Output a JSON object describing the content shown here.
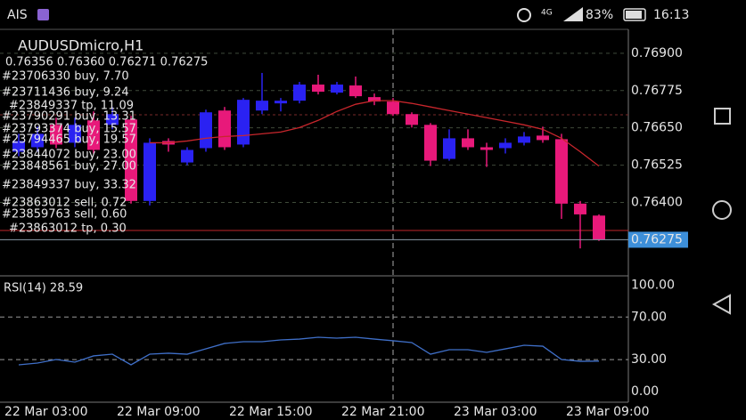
{
  "status_bar": {
    "carrier": "AIS",
    "network": "4G",
    "battery": "83%",
    "time": "16:13"
  },
  "chart_data": [
    {
      "type": "candlestick",
      "title": "AUDUSDmicro,H1",
      "subtitle": "0.76356 0.76360 0.76271 0.76275",
      "categories": [
        "22 Mar 03:00",
        null,
        null,
        null,
        null,
        null,
        "22 Mar 09:00",
        null,
        null,
        null,
        null,
        null,
        "22 Mar 15:00",
        null,
        null,
        null,
        null,
        null,
        "22 Mar 21:00",
        null,
        null,
        null,
        null,
        null,
        "23 Mar 03:00",
        null,
        null,
        null,
        null,
        null,
        "23 Mar 09:00",
        null
      ],
      "open": [
        0.7657,
        0.76585,
        0.7666,
        0.766,
        0.76675,
        0.7666,
        0.76678,
        0.76405,
        0.76606,
        0.76534,
        0.76582,
        0.76708,
        0.76594,
        0.76708,
        0.76732,
        0.76741,
        0.76795,
        0.76768,
        0.76792,
        0.76753,
        0.76738,
        0.76696,
        0.7666,
        0.76546,
        0.76615,
        0.76585,
        0.76582,
        0.766,
        0.76624,
        0.76612,
        0.76396,
        0.76356
      ],
      "high": [
        0.7663,
        0.76654,
        0.76684,
        0.76684,
        0.76705,
        0.7672,
        0.7669,
        0.76615,
        0.76615,
        0.76585,
        0.76711,
        0.7672,
        0.7675,
        0.76834,
        0.7675,
        0.76804,
        0.76828,
        0.76804,
        0.76822,
        0.76765,
        0.7675,
        0.76702,
        0.76666,
        0.76645,
        0.76645,
        0.766,
        0.76615,
        0.76636,
        0.76654,
        0.7663,
        0.76405,
        0.7636
      ],
      "low": [
        0.76555,
        0.7657,
        0.76582,
        0.76585,
        0.76564,
        0.76645,
        0.76396,
        0.7639,
        0.7657,
        0.76525,
        0.7657,
        0.76576,
        0.76585,
        0.76696,
        0.76705,
        0.76732,
        0.76762,
        0.76762,
        0.7675,
        0.76726,
        0.7669,
        0.76651,
        0.76522,
        0.7654,
        0.76576,
        0.76519,
        0.76564,
        0.76591,
        0.766,
        0.76345,
        0.76246,
        0.76271
      ],
      "close": [
        0.76606,
        0.7663,
        0.76594,
        0.7666,
        0.76576,
        0.76696,
        0.76405,
        0.766,
        0.76594,
        0.76576,
        0.76702,
        0.76585,
        0.76744,
        0.76741,
        0.76741,
        0.76795,
        0.76771,
        0.76795,
        0.76756,
        0.76738,
        0.76696,
        0.7666,
        0.7654,
        0.76615,
        0.76585,
        0.76576,
        0.766,
        0.76621,
        0.76609,
        0.76396,
        0.7636,
        0.76275
      ],
      "colors": {
        "up": "#2a22f2",
        "down": "#e8197a"
      },
      "ma": {
        "color": "#c8262c",
        "values": [
          null,
          null,
          null,
          null,
          null,
          null,
          null,
          0.766,
          0.766,
          0.76606,
          0.76615,
          0.76621,
          0.76624,
          0.7663,
          0.76636,
          0.76651,
          0.76675,
          0.76705,
          0.76729,
          0.76741,
          0.76741,
          0.76732,
          0.7672,
          0.76708,
          0.76696,
          0.76684,
          0.76672,
          0.7666,
          0.76645,
          0.76615,
          0.7657,
          0.76522
        ]
      },
      "ylim": [
        0.7616,
        0.7698
      ],
      "yticks": [
        {
          "value": 0.769,
          "label": "0.76900"
        },
        0.76775,
        {
          "value": 0.7665,
          "label": "0.76650"
        },
        0.76525,
        {
          "value": 0.764,
          "label": "0.76400"
        }
      ],
      "grid": true,
      "current_price": 0.76275,
      "annotations": [
        "#23706330 buy, 7.70",
        "#23711436 buy, 9.24",
        "#23849337 tp, 11.09",
        "#23790291 buy, 13.31",
        "#23793374 buy, 15.57",
        "#23794465 buy, 19.57",
        "#23844072 buy, 23.00",
        "#23848561 buy, 27.00",
        "#23849337 buy, 33.32",
        "#23863012 sell, 0.72",
        "#23859763 sell, 0.60",
        "#23863012 tp, 0.30"
      ]
    },
    {
      "type": "line",
      "title": "RSI(14) 28.59",
      "color": "#3f6fc8",
      "values": [
        25.1,
        26.8,
        30.1,
        27.6,
        33.5,
        35.1,
        25.1,
        35.1,
        36.0,
        35.1,
        40.1,
        45.2,
        46.8,
        46.8,
        48.5,
        49.3,
        51.0,
        50.2,
        51.0,
        49.3,
        47.7,
        46.0,
        35.1,
        39.3,
        39.3,
        36.8,
        40.1,
        43.5,
        42.6,
        30.1,
        28.4,
        28.59
      ],
      "ylim": [
        -10,
        107
      ],
      "yticks": [
        {
          "value": 0,
          "label": "0.00"
        },
        {
          "value": 30,
          "label": "30.00"
        },
        {
          "value": 70,
          "label": "70.00"
        },
        {
          "value": 100,
          "label": "100.00"
        }
      ]
    }
  ]
}
